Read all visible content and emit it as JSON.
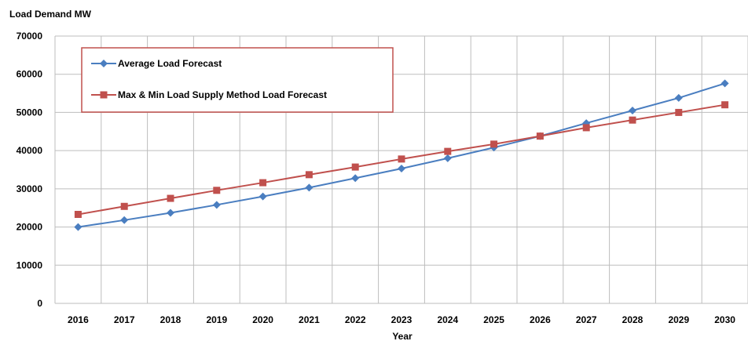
{
  "chart_data": {
    "type": "line",
    "title": "",
    "ylabel": "Load Demand MW",
    "xlabel": "Year",
    "ylim": [
      0,
      70000
    ],
    "yticks": [
      0,
      10000,
      20000,
      30000,
      40000,
      50000,
      60000,
      70000
    ],
    "categories": [
      "2016",
      "2017",
      "2018",
      "2019",
      "2020",
      "2021",
      "2022",
      "2023",
      "2024",
      "2025",
      "2026",
      "2027",
      "2028",
      "2029",
      "2030"
    ],
    "grid": true,
    "legend_position": "top-left",
    "series": [
      {
        "name": "Average Load Forecast",
        "color": "#4a7ec0",
        "marker": "diamond",
        "values": [
          20000,
          21800,
          23700,
          25800,
          28000,
          30300,
          32800,
          35300,
          38000,
          40800,
          43800,
          47200,
          50500,
          53800,
          57600
        ]
      },
      {
        "name": "Max & Min Load Supply Method Load Forecast",
        "color": "#c0504d",
        "marker": "square",
        "values": [
          23300,
          25400,
          27500,
          29600,
          31600,
          33700,
          35700,
          37800,
          39800,
          41700,
          43800,
          46000,
          48000,
          50000,
          52000
        ]
      }
    ]
  }
}
